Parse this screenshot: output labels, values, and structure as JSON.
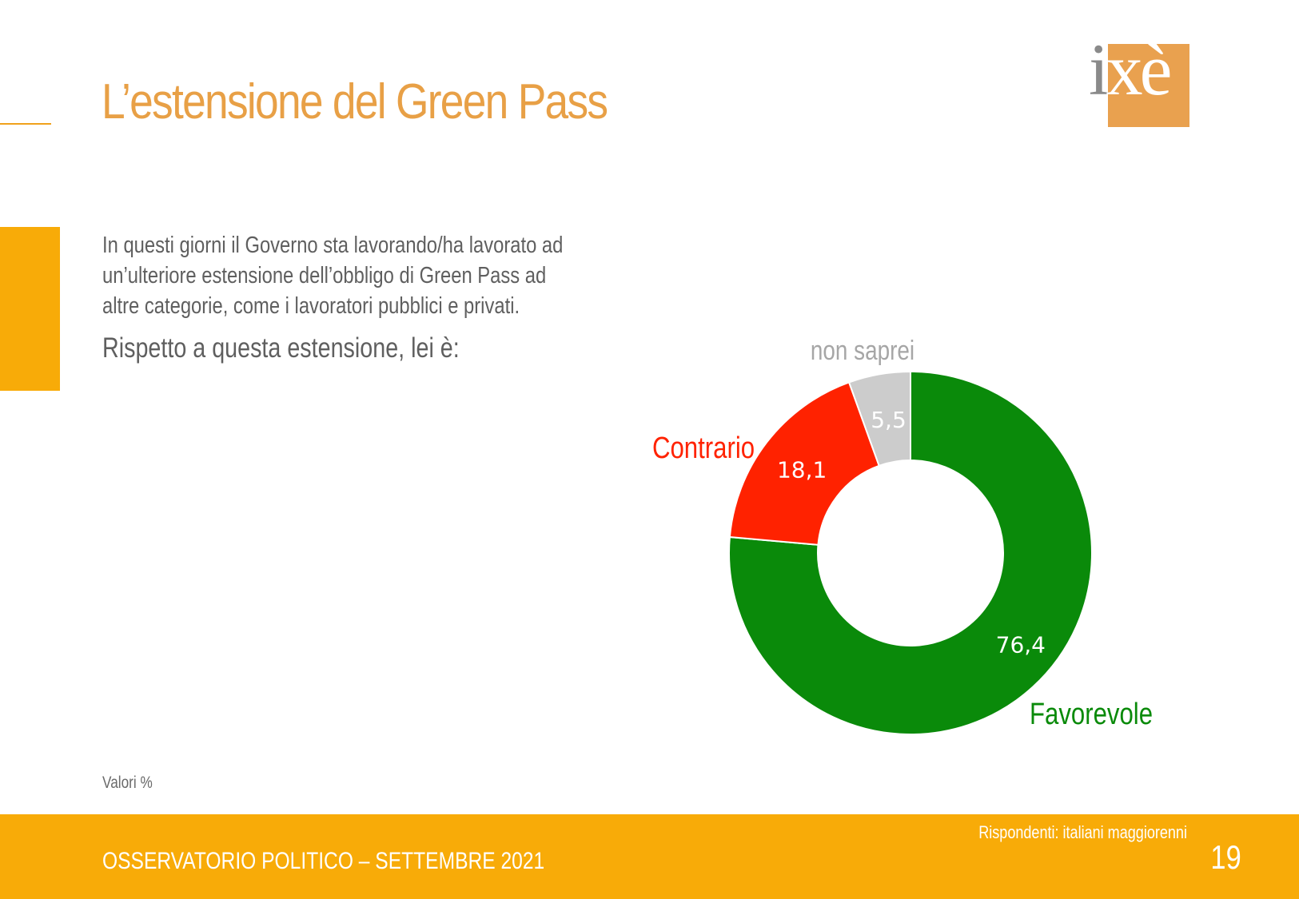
{
  "header": {
    "title": "L’estensione del Green Pass",
    "logo": {
      "text_i": "i",
      "text_x": "xè"
    }
  },
  "question": {
    "lines": [
      "In questi giorni il Governo sta lavorando/ha lavorato ad",
      "un’ulteriore estensione dell’obbligo di Green Pass ad",
      "altre categorie, come i lavoratori pubblici e privati."
    ],
    "prompt": "Rispetto a questa estensione, lei è:"
  },
  "chart_data": {
    "type": "pie",
    "donut": true,
    "slices": [
      {
        "label": "Favorevole",
        "value": 76.4,
        "value_label": "76,4",
        "color": "#0a8a0a"
      },
      {
        "label": "Contrario",
        "value": 18.1,
        "value_label": "18,1",
        "color": "#ff2200"
      },
      {
        "label": "non saprei",
        "value": 5.5,
        "value_label": "5,5",
        "color": "#cccccc",
        "label_color": "#a6a6a6"
      }
    ],
    "start": "top, clockwise"
  },
  "notes": {
    "values": "Valori %"
  },
  "footer": {
    "respondents": "Rispondenti: italiani maggiorenni",
    "survey": "OSSERVATORIO POLITICO – SETTEMBRE 2021",
    "page": "19"
  },
  "colors": {
    "accent_orange": "#f8ab08",
    "title_orange": "#e8a046",
    "text_gray": "#5f5f5f"
  }
}
